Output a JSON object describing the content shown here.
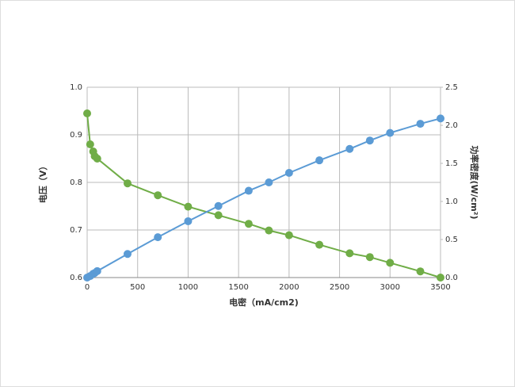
{
  "chart_data": {
    "type": "line",
    "xlabel": "电密（mA/cm2)",
    "ylabel": "电压（V）",
    "y2label": "功率密度(W/cm²)",
    "x": [
      0,
      30,
      60,
      75,
      100,
      400,
      700,
      1000,
      1300,
      1600,
      1800,
      2000,
      2300,
      2600,
      2800,
      3000,
      3300,
      3500
    ],
    "series": [
      {
        "color": "#70ad47",
        "values": [
          0.945,
          0.88,
          0.865,
          0.855,
          0.85,
          0.798,
          0.773,
          0.749,
          0.731,
          0.713,
          0.699,
          0.689,
          0.669,
          0.651,
          0.643,
          0.631,
          0.613,
          0.6
        ]
      },
      {
        "color": "#5b9bd5",
        "axis": "y2",
        "values": [
          0,
          0.02,
          0.05,
          0.06,
          0.085,
          0.31,
          0.53,
          0.74,
          0.94,
          1.14,
          1.25,
          1.375,
          1.54,
          1.69,
          1.8,
          1.9,
          2.02,
          2.09
        ]
      }
    ],
    "xlim": [
      0,
      3500
    ],
    "xticks": [
      0,
      500,
      1000,
      1500,
      2000,
      2500,
      3000,
      3500
    ],
    "ylim": [
      0.6,
      1.0
    ],
    "yticks": [
      0.6,
      0.7,
      0.8,
      0.9,
      {
        "value": 1.0,
        "label": "1.0"
      }
    ],
    "y2lim": [
      0,
      2.5
    ],
    "y2ticks": [
      {
        "value": 0,
        "label": "0.0"
      },
      0.5,
      {
        "value": 1,
        "label": "1.0"
      },
      1.5,
      {
        "value": 2,
        "label": "2.0"
      },
      2.5
    ],
    "grid": true
  }
}
